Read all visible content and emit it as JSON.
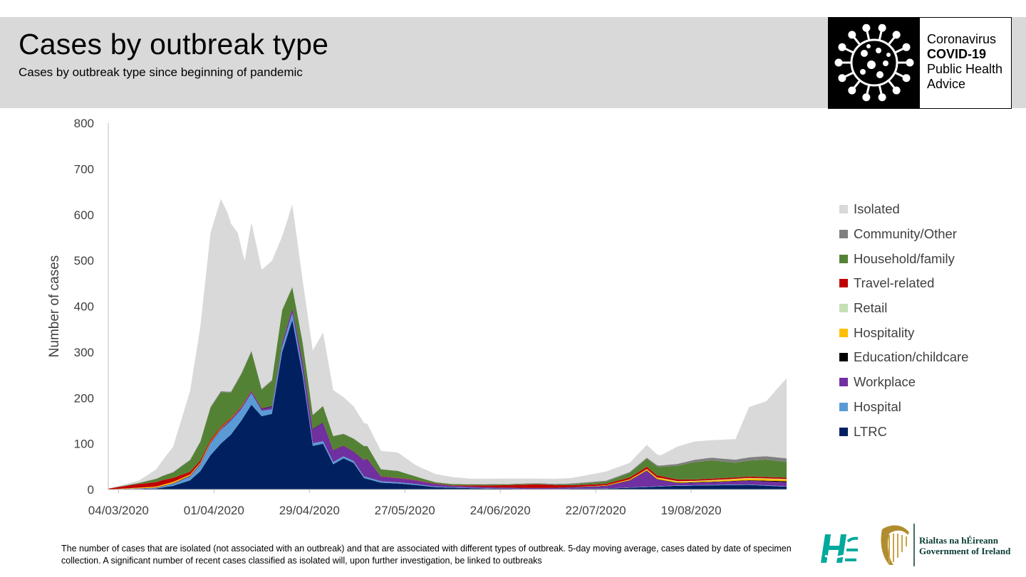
{
  "header": {
    "title": "Cases by outbreak type",
    "subtitle": "Cases by outbreak type since beginning of pandemic",
    "badge": {
      "line1": "Coronavirus",
      "line2": "COVID-19",
      "line3": "Public Health",
      "line4": "Advice",
      "icon": "virus-icon"
    }
  },
  "footnote": "The number of cases that are isolated (not associated with an outbreak) and that are associated with different types of outbreak. 5-day moving average, cases dated by date of specimen collection. A significant number of recent cases classified as isolated will, upon further investigation, be linked to outbreaks",
  "logos": {
    "hse_icon": "hse-logo-icon",
    "harp_icon": "harp-emblem-icon",
    "gov_line1": "Rialtas na hÉireann",
    "gov_line2": "Government of Ireland"
  },
  "chart_data": {
    "type": "area",
    "stacked": true,
    "ylabel": "Number of cases",
    "ylim": [
      0,
      800
    ],
    "yticks": [
      0,
      100,
      200,
      300,
      400,
      500,
      600,
      700,
      800
    ],
    "xtick_labels": [
      "04/03/2020",
      "01/04/2020",
      "29/04/2020",
      "27/05/2020",
      "24/06/2020",
      "22/07/2020",
      "19/08/2020"
    ],
    "grid": false,
    "legend_position": "right",
    "x_start": "2020-03-01",
    "x_end": "2020-09-16",
    "series": [
      {
        "name": "LTRC",
        "color": "#002060",
        "points": [
          [
            "2020-03-01",
            0
          ],
          [
            "2020-03-15",
            2
          ],
          [
            "2020-03-20",
            8
          ],
          [
            "2020-03-25",
            20
          ],
          [
            "2020-03-28",
            40
          ],
          [
            "2020-03-31",
            75
          ],
          [
            "2020-04-03",
            100
          ],
          [
            "2020-04-06",
            120
          ],
          [
            "2020-04-09",
            150
          ],
          [
            "2020-04-12",
            185
          ],
          [
            "2020-04-15",
            160
          ],
          [
            "2020-04-18",
            165
          ],
          [
            "2020-04-21",
            300
          ],
          [
            "2020-04-24",
            370
          ],
          [
            "2020-04-27",
            250
          ],
          [
            "2020-04-30",
            95
          ],
          [
            "2020-05-03",
            100
          ],
          [
            "2020-05-06",
            55
          ],
          [
            "2020-05-09",
            68
          ],
          [
            "2020-05-12",
            58
          ],
          [
            "2020-05-15",
            25
          ],
          [
            "2020-05-20",
            15
          ],
          [
            "2020-05-25",
            13
          ],
          [
            "2020-05-30",
            10
          ],
          [
            "2020-06-05",
            5
          ],
          [
            "2020-06-20",
            2
          ],
          [
            "2020-07-05",
            1
          ],
          [
            "2020-07-25",
            2
          ],
          [
            "2020-08-05",
            5
          ],
          [
            "2020-08-15",
            8
          ],
          [
            "2020-08-25",
            9
          ],
          [
            "2020-09-05",
            10
          ],
          [
            "2020-09-16",
            6
          ]
        ]
      },
      {
        "name": "Hospital",
        "color": "#5b9bd5",
        "points": [
          [
            "2020-03-01",
            0
          ],
          [
            "2020-03-15",
            1
          ],
          [
            "2020-03-20",
            4
          ],
          [
            "2020-03-25",
            8
          ],
          [
            "2020-03-28",
            14
          ],
          [
            "2020-03-31",
            25
          ],
          [
            "2020-04-03",
            30
          ],
          [
            "2020-04-06",
            30
          ],
          [
            "2020-04-09",
            25
          ],
          [
            "2020-04-12",
            25
          ],
          [
            "2020-04-15",
            12
          ],
          [
            "2020-04-18",
            10
          ],
          [
            "2020-04-21",
            12
          ],
          [
            "2020-04-24",
            15
          ],
          [
            "2020-04-27",
            10
          ],
          [
            "2020-04-30",
            6
          ],
          [
            "2020-05-06",
            5
          ],
          [
            "2020-05-12",
            4
          ],
          [
            "2020-05-20",
            3
          ],
          [
            "2020-05-30",
            2
          ],
          [
            "2020-06-10",
            1
          ],
          [
            "2020-07-05",
            0
          ],
          [
            "2020-08-20",
            1
          ],
          [
            "2020-09-16",
            1
          ]
        ]
      },
      {
        "name": "Workplace",
        "color": "#7030a0",
        "points": [
          [
            "2020-03-01",
            0
          ],
          [
            "2020-03-20",
            1
          ],
          [
            "2020-04-01",
            2
          ],
          [
            "2020-04-15",
            4
          ],
          [
            "2020-04-24",
            10
          ],
          [
            "2020-04-30",
            30
          ],
          [
            "2020-05-03",
            40
          ],
          [
            "2020-05-06",
            25
          ],
          [
            "2020-05-12",
            20
          ],
          [
            "2020-05-16",
            40
          ],
          [
            "2020-05-20",
            10
          ],
          [
            "2020-05-30",
            8
          ],
          [
            "2020-06-10",
            3
          ],
          [
            "2020-06-25",
            2
          ],
          [
            "2020-07-10",
            2
          ],
          [
            "2020-07-25",
            5
          ],
          [
            "2020-08-01",
            15
          ],
          [
            "2020-08-06",
            35
          ],
          [
            "2020-08-09",
            15
          ],
          [
            "2020-08-15",
            5
          ],
          [
            "2020-08-25",
            6
          ],
          [
            "2020-09-05",
            8
          ],
          [
            "2020-09-16",
            9
          ]
        ]
      },
      {
        "name": "Education/childcare",
        "color": "#000000",
        "points": [
          [
            "2020-03-01",
            0
          ],
          [
            "2020-04-01",
            1
          ],
          [
            "2020-05-01",
            1
          ],
          [
            "2020-06-01",
            0
          ],
          [
            "2020-09-01",
            1
          ],
          [
            "2020-09-16",
            2
          ]
        ]
      },
      {
        "name": "Hospitality",
        "color": "#ffc000",
        "points": [
          [
            "2020-03-01",
            0
          ],
          [
            "2020-03-20",
            3
          ],
          [
            "2020-03-30",
            2
          ],
          [
            "2020-04-15",
            0
          ],
          [
            "2020-07-15",
            0
          ],
          [
            "2020-08-01",
            2
          ],
          [
            "2020-08-10",
            3
          ],
          [
            "2020-08-20",
            2
          ],
          [
            "2020-09-05",
            4
          ],
          [
            "2020-09-16",
            4
          ]
        ]
      },
      {
        "name": "Retail",
        "color": "#c5e0b4",
        "points": [
          [
            "2020-03-01",
            0
          ],
          [
            "2020-08-01",
            0
          ],
          [
            "2020-08-15",
            1
          ],
          [
            "2020-09-16",
            1
          ]
        ]
      },
      {
        "name": "Travel-related",
        "color": "#c00000",
        "points": [
          [
            "2020-03-01",
            2
          ],
          [
            "2020-03-10",
            8
          ],
          [
            "2020-03-17",
            10
          ],
          [
            "2020-03-25",
            6
          ],
          [
            "2020-04-05",
            2
          ],
          [
            "2020-04-20",
            0
          ],
          [
            "2020-06-10",
            1
          ],
          [
            "2020-06-25",
            5
          ],
          [
            "2020-07-05",
            8
          ],
          [
            "2020-07-15",
            4
          ],
          [
            "2020-07-25",
            3
          ],
          [
            "2020-08-06",
            5
          ],
          [
            "2020-08-20",
            3
          ],
          [
            "2020-09-05",
            3
          ],
          [
            "2020-09-16",
            3
          ]
        ]
      },
      {
        "name": "Household/family",
        "color": "#548235",
        "points": [
          [
            "2020-03-01",
            0
          ],
          [
            "2020-03-10",
            2
          ],
          [
            "2020-03-20",
            12
          ],
          [
            "2020-03-25",
            25
          ],
          [
            "2020-03-28",
            40
          ],
          [
            "2020-03-31",
            70
          ],
          [
            "2020-04-03",
            75
          ],
          [
            "2020-04-06",
            55
          ],
          [
            "2020-04-09",
            70
          ],
          [
            "2020-04-12",
            85
          ],
          [
            "2020-04-15",
            40
          ],
          [
            "2020-04-18",
            55
          ],
          [
            "2020-04-21",
            70
          ],
          [
            "2020-04-24",
            45
          ],
          [
            "2020-04-27",
            40
          ],
          [
            "2020-04-30",
            30
          ],
          [
            "2020-05-03",
            35
          ],
          [
            "2020-05-06",
            30
          ],
          [
            "2020-05-09",
            25
          ],
          [
            "2020-05-15",
            30
          ],
          [
            "2020-05-20",
            15
          ],
          [
            "2020-05-25",
            15
          ],
          [
            "2020-05-30",
            8
          ],
          [
            "2020-06-05",
            3
          ],
          [
            "2020-06-20",
            2
          ],
          [
            "2020-07-10",
            1
          ],
          [
            "2020-07-25",
            5
          ],
          [
            "2020-08-01",
            10
          ],
          [
            "2020-08-06",
            18
          ],
          [
            "2020-08-10",
            20
          ],
          [
            "2020-08-15",
            30
          ],
          [
            "2020-08-20",
            38
          ],
          [
            "2020-08-25",
            40
          ],
          [
            "2020-09-01",
            32
          ],
          [
            "2020-09-05",
            35
          ],
          [
            "2020-09-10",
            38
          ],
          [
            "2020-09-16",
            34
          ]
        ]
      },
      {
        "name": "Community/Other",
        "color": "#7f7f7f",
        "points": [
          [
            "2020-03-01",
            0
          ],
          [
            "2020-03-20",
            1
          ],
          [
            "2020-04-01",
            2
          ],
          [
            "2020-04-15",
            2
          ],
          [
            "2020-05-01",
            1
          ],
          [
            "2020-06-01",
            0
          ],
          [
            "2020-07-25",
            2
          ],
          [
            "2020-08-06",
            2
          ],
          [
            "2020-08-15",
            4
          ],
          [
            "2020-08-25",
            6
          ],
          [
            "2020-09-05",
            7
          ],
          [
            "2020-09-16",
            8
          ]
        ]
      },
      {
        "name": "Isolated",
        "color": "#d9d9d9",
        "points": [
          [
            "2020-03-01",
            0
          ],
          [
            "2020-03-10",
            5
          ],
          [
            "2020-03-15",
            20
          ],
          [
            "2020-03-20",
            55
          ],
          [
            "2020-03-25",
            150
          ],
          [
            "2020-03-28",
            250
          ],
          [
            "2020-03-31",
            380
          ],
          [
            "2020-04-03",
            420
          ],
          [
            "2020-04-05",
            390
          ],
          [
            "2020-04-08",
            320
          ],
          [
            "2020-04-10",
            230
          ],
          [
            "2020-04-12",
            280
          ],
          [
            "2020-04-15",
            260
          ],
          [
            "2020-04-18",
            260
          ],
          [
            "2020-04-21",
            160
          ],
          [
            "2020-04-24",
            180
          ],
          [
            "2020-04-27",
            135
          ],
          [
            "2020-04-30",
            140
          ],
          [
            "2020-05-03",
            160
          ],
          [
            "2020-05-06",
            100
          ],
          [
            "2020-05-09",
            80
          ],
          [
            "2020-05-12",
            70
          ],
          [
            "2020-05-15",
            50
          ],
          [
            "2020-05-20",
            40
          ],
          [
            "2020-05-25",
            40
          ],
          [
            "2020-05-30",
            25
          ],
          [
            "2020-06-05",
            18
          ],
          [
            "2020-06-15",
            12
          ],
          [
            "2020-06-25",
            12
          ],
          [
            "2020-07-05",
            10
          ],
          [
            "2020-07-15",
            12
          ],
          [
            "2020-07-25",
            20
          ],
          [
            "2020-08-01",
            20
          ],
          [
            "2020-08-06",
            28
          ],
          [
            "2020-08-10",
            22
          ],
          [
            "2020-08-15",
            38
          ],
          [
            "2020-08-20",
            40
          ],
          [
            "2020-08-25",
            38
          ],
          [
            "2020-09-01",
            45
          ],
          [
            "2020-09-05",
            110
          ],
          [
            "2020-09-10",
            120
          ],
          [
            "2020-09-16",
            175
          ]
        ]
      }
    ]
  }
}
